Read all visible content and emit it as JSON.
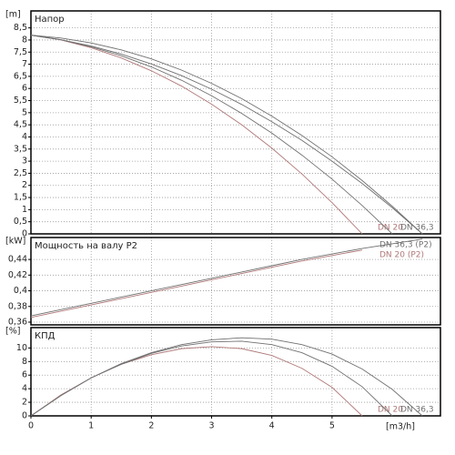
{
  "chart_data": [
    {
      "type": "line",
      "title": "Напор",
      "ylabel": "[m]",
      "x": [
        0,
        0.5,
        1,
        1.5,
        2,
        2.5,
        3,
        3.5,
        4,
        4.5,
        5,
        5.5,
        6,
        6.5
      ],
      "series": [
        {
          "name": "DN 20",
          "color": "#b07878",
          "values": [
            8.2,
            8.0,
            7.68,
            7.26,
            6.73,
            6.1,
            5.35,
            4.5,
            3.54,
            2.47,
            1.29,
            0,
            null,
            null
          ]
        },
        {
          "color": "#707070",
          "values": [
            8.2,
            8.01,
            7.72,
            7.35,
            6.89,
            6.34,
            5.7,
            4.97,
            4.16,
            3.25,
            2.26,
            1.17,
            0,
            null
          ]
        },
        {
          "name": "DN 36,3",
          "color": "#707070",
          "values": [
            8.2,
            8.01,
            7.75,
            7.42,
            7.01,
            6.53,
            5.97,
            5.34,
            4.63,
            3.86,
            3.0,
            2.08,
            1.08,
            0
          ]
        },
        {
          "color": "#707070",
          "values": [
            8.2,
            8.08,
            7.88,
            7.59,
            7.22,
            6.76,
            6.21,
            5.58,
            4.86,
            4.06,
            3.18,
            2.2,
            1.14,
            0
          ]
        }
      ],
      "xlim": [
        0,
        6.8
      ],
      "ylim": [
        0,
        9.2
      ],
      "yticks": [
        0,
        {
          "value": 0.5,
          "label": "0,5"
        },
        1,
        {
          "value": 1.5,
          "label": "1,5"
        },
        2,
        {
          "value": 2.5,
          "label": "2,5"
        },
        3,
        {
          "value": 3.5,
          "label": "3,5"
        },
        4,
        {
          "value": 4.5,
          "label": "4,5"
        },
        5,
        {
          "value": 5.5,
          "label": "5,5"
        },
        6,
        {
          "value": 6.5,
          "label": "6,5"
        },
        7,
        {
          "value": 7.5,
          "label": "7,5"
        },
        8,
        {
          "value": 8.5,
          "label": "8,5"
        }
      ],
      "grid": true
    },
    {
      "type": "line",
      "title": "Мощность на валу P2",
      "ylabel": "[kW]",
      "x": [
        0,
        0.5,
        1,
        1.5,
        2,
        2.5,
        3,
        3.5,
        4,
        4.5,
        5,
        5.5,
        6,
        6.5
      ],
      "series": [
        {
          "name": "DN 36,3 (P2)",
          "color": "#707070",
          "values": [
            0.368,
            0.376,
            0.384,
            0.392,
            0.4,
            0.408,
            0.416,
            0.424,
            0.432,
            0.44,
            0.447,
            0.454,
            0.46,
            0.466
          ]
        },
        {
          "name": "DN 20 (P2)",
          "color": "#b07878",
          "values": [
            0.366,
            0.374,
            0.382,
            0.39,
            0.398,
            0.406,
            0.414,
            0.422,
            0.43,
            0.438,
            0.445,
            0.452,
            null,
            null
          ]
        }
      ],
      "xlim": [
        0,
        6.8
      ],
      "ylim": [
        0.3565,
        0.468
      ],
      "yticks": [
        {
          "value": 0.36,
          "label": "0,36"
        },
        {
          "value": 0.38,
          "label": "0,38"
        },
        {
          "value": 0.4,
          "label": "0,4"
        },
        {
          "value": 0.42,
          "label": "0,42"
        },
        {
          "value": 0.44,
          "label": "0,44"
        }
      ],
      "grid": true
    },
    {
      "type": "line",
      "title": "КПД",
      "ylabel": "[%]",
      "xlabel": "[m3/h]",
      "x": [
        0,
        0.5,
        1,
        1.5,
        2,
        2.5,
        3,
        3.5,
        4,
        4.5,
        5,
        5.5,
        6,
        6.5
      ],
      "series": [
        {
          "name": "DN 20",
          "color": "#b07878",
          "values": [
            0,
            3.1,
            5.6,
            7.6,
            9.0,
            9.9,
            10.2,
            9.9,
            8.9,
            7.0,
            4.2,
            0,
            null,
            null
          ]
        },
        {
          "color": "#707070",
          "values": [
            0,
            3.0,
            5.6,
            7.6,
            9.2,
            10.3,
            10.9,
            11.0,
            10.5,
            9.3,
            7.3,
            4.3,
            0,
            null
          ]
        },
        {
          "name": "DN 36,3",
          "color": "#707070",
          "values": [
            0,
            3.0,
            5.6,
            7.7,
            9.3,
            10.5,
            11.2,
            11.5,
            11.3,
            10.5,
            9.1,
            6.9,
            3.9,
            0
          ]
        }
      ],
      "xlim": [
        0,
        6.8
      ],
      "ylim": [
        0,
        13
      ],
      "xticks": [
        0,
        1,
        2,
        3,
        4,
        5
      ],
      "yticks": [
        0,
        2,
        4,
        6,
        8,
        10
      ],
      "grid": true
    }
  ]
}
